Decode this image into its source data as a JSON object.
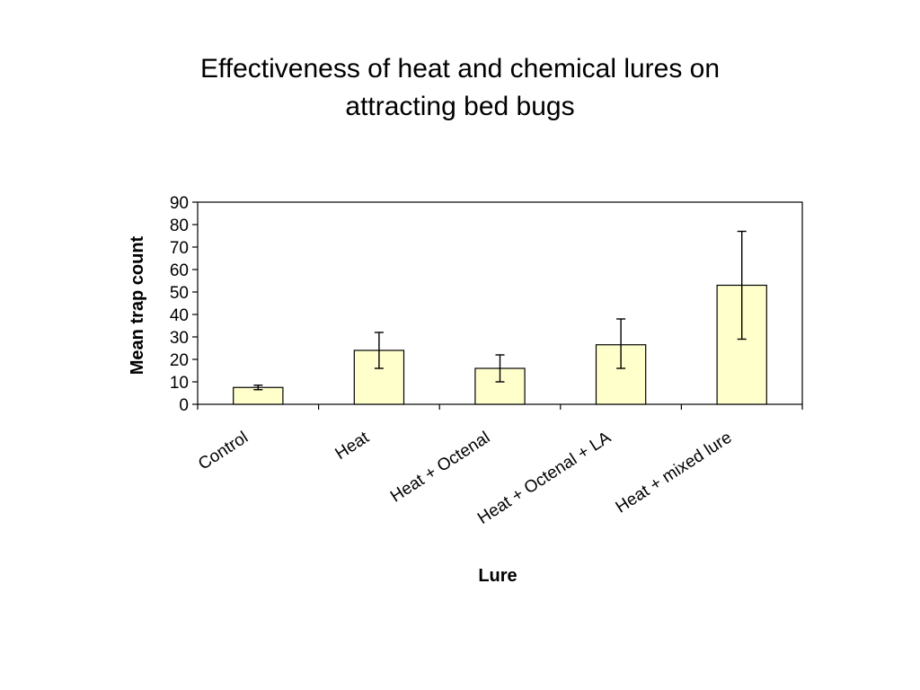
{
  "chart_data": {
    "type": "bar",
    "title_lines": [
      "Effectiveness of heat and chemical lures on",
      "attracting bed bugs"
    ],
    "xlabel": "Lure",
    "ylabel": "Mean trap count",
    "categories": [
      "Control",
      "Heat",
      "Heat + Octenal",
      "Heat + Octenal + LA",
      "Heat + mixed lure"
    ],
    "values": [
      7.5,
      24,
      16,
      26.5,
      53
    ],
    "error_low": [
      6.5,
      16,
      10,
      16,
      29
    ],
    "error_high": [
      8.5,
      32,
      22,
      38,
      77
    ],
    "ylim": [
      0,
      90
    ],
    "yticks": [
      "0",
      "10",
      "20",
      "30",
      "40",
      "50",
      "60",
      "70",
      "80",
      "90"
    ],
    "grid": false,
    "legend": "none",
    "bar_color": "#ffffcc",
    "bar_stroke": "#000000"
  }
}
